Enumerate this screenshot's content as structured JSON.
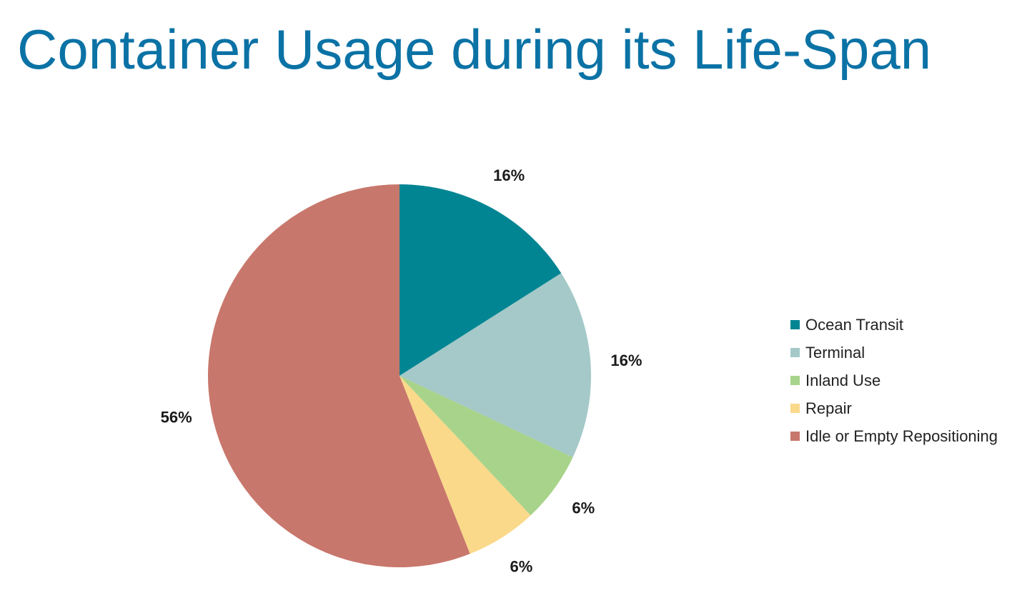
{
  "title": "Container Usage during its Life-Span",
  "colors": {
    "title": "#0b72a5",
    "ocean_transit": "#028593",
    "terminal": "#a4c9c8",
    "inland_use": "#a8d38a",
    "repair": "#fad98a",
    "idle": "#c8776c"
  },
  "chart_data": {
    "type": "pie",
    "title": "",
    "slices": [
      {
        "name": "Ocean Transit",
        "value": 16,
        "label": "16%",
        "color": "#028593"
      },
      {
        "name": "Terminal",
        "value": 16,
        "label": "16%",
        "color": "#a4c9c8"
      },
      {
        "name": "Inland Use",
        "value": 6,
        "label": "6%",
        "color": "#a8d38a"
      },
      {
        "name": "Repair",
        "value": 6,
        "label": "6%",
        "color": "#fad98a"
      },
      {
        "name": "Idle or Empty Repositioning",
        "value": 56,
        "label": "56%",
        "color": "#c8776c"
      }
    ],
    "legend_position": "right"
  }
}
